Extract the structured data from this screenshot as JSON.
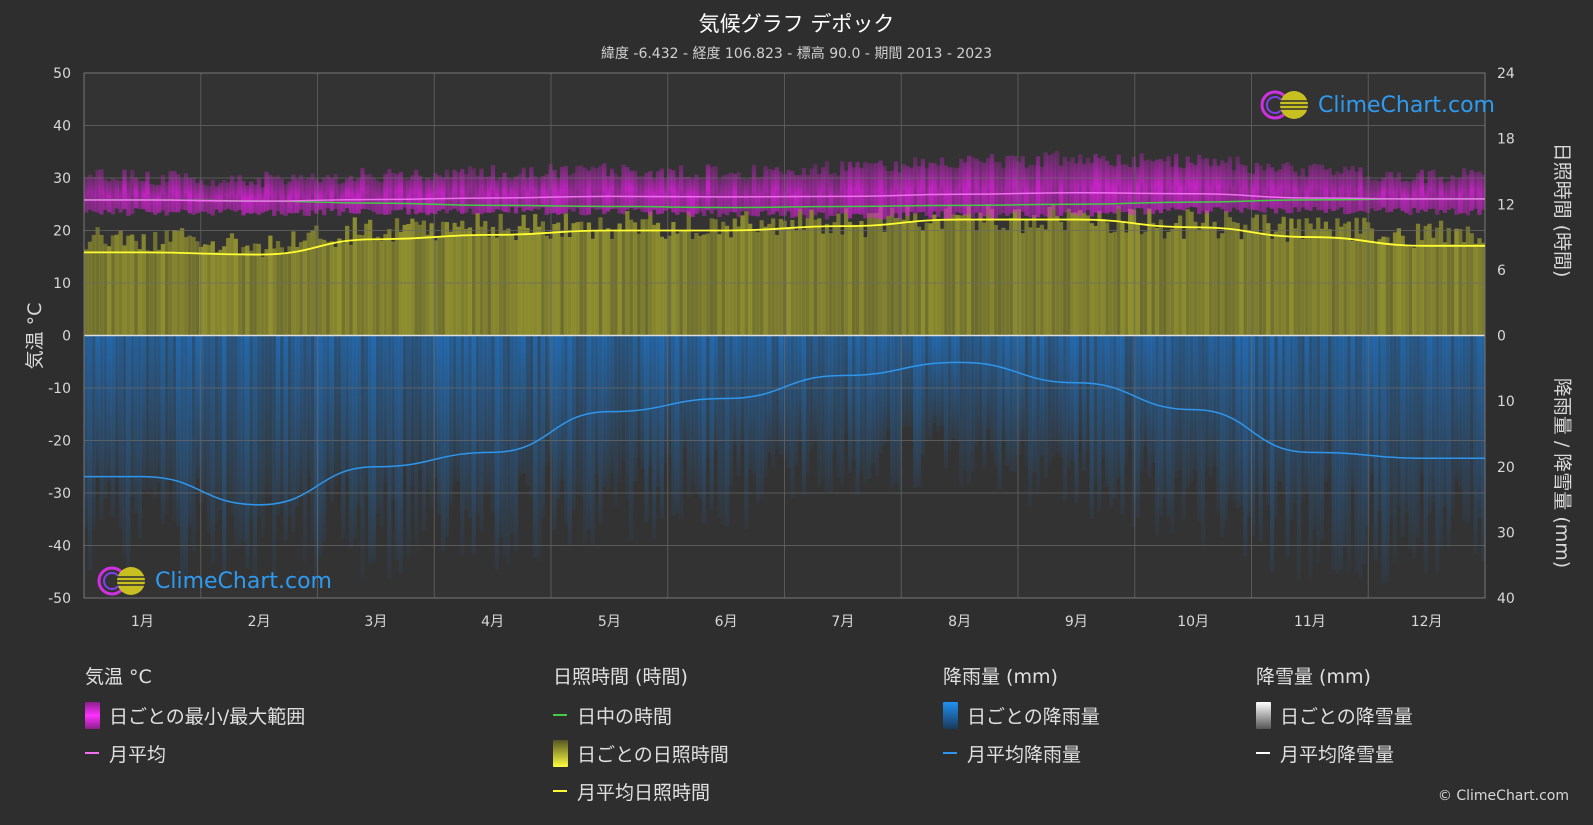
{
  "header": {
    "title": "気候グラフ デポック",
    "subtitle": "緯度 -6.432 - 経度 106.823 - 標高 90.0 - 期間 2013 - 2023"
  },
  "axes": {
    "left_label": "気温 °C",
    "right_top_label": "日照時間 (時間)",
    "right_bottom_label": "降雨量 / 降雪量 (mm)",
    "temp_ticks": [
      "50",
      "40",
      "30",
      "20",
      "10",
      "0",
      "-10",
      "-20",
      "-30",
      "-40",
      "-50"
    ],
    "sun_ticks": [
      "24",
      "18",
      "12",
      "6",
      "0"
    ],
    "rain_ticks": [
      "0",
      "10",
      "20",
      "30",
      "40"
    ]
  },
  "chart_data": {
    "type": "line",
    "categories": [
      "1月",
      "2月",
      "3月",
      "4月",
      "5月",
      "6月",
      "7月",
      "8月",
      "9月",
      "10月",
      "11月",
      "12月"
    ],
    "temp_range": [
      -50,
      50
    ],
    "sunshine_range": [
      0,
      24
    ],
    "precip_range": [
      0,
      40
    ],
    "series": [
      {
        "name": "月平均",
        "axis": "temperature",
        "values": [
          25.8,
          25.6,
          25.9,
          26.2,
          26.5,
          26.4,
          26.5,
          26.9,
          27.2,
          27.0,
          26.2,
          26.0
        ]
      },
      {
        "name": "日中の時間",
        "axis": "sunshine",
        "values": [
          12.4,
          12.3,
          12.1,
          11.9,
          11.8,
          11.7,
          11.8,
          11.9,
          12.0,
          12.2,
          12.4,
          12.5
        ]
      },
      {
        "name": "月平均日照時間",
        "axis": "sunshine",
        "values": [
          7.6,
          7.4,
          8.8,
          9.2,
          9.6,
          9.6,
          10.0,
          10.6,
          10.6,
          9.9,
          9.0,
          8.2
        ]
      },
      {
        "name": "月平均降雨量",
        "axis": "precipitation",
        "values": [
          21.5,
          25.8,
          20.0,
          17.8,
          11.6,
          9.6,
          6.1,
          4.1,
          7.2,
          11.3,
          17.8,
          18.7
        ]
      },
      {
        "name": "月平均降雪量",
        "axis": "precipitation",
        "values": [
          0,
          0,
          0,
          0,
          0,
          0,
          0,
          0,
          0,
          0,
          0,
          0
        ]
      }
    ],
    "daily_temp_band": {
      "min": [
        23.5,
        23.4,
        23.6,
        23.8,
        23.6,
        23.2,
        22.8,
        22.9,
        23.3,
        23.8,
        23.8,
        23.6
      ],
      "max": [
        30.2,
        29.8,
        30.5,
        31.0,
        31.5,
        31.2,
        31.8,
        33.0,
        33.8,
        33.2,
        31.5,
        30.5
      ]
    },
    "daily_sunshine_band": [
      9.5,
      9.0,
      10.5,
      10.8,
      11.0,
      11.0,
      11.2,
      11.5,
      11.5,
      11.0,
      10.5,
      10.0
    ],
    "daily_rain_depth": [
      38,
      40,
      38,
      36,
      32,
      30,
      26,
      24,
      28,
      32,
      38,
      38
    ]
  },
  "colors": {
    "background": "#2e2e2e",
    "grid": "#5a5a5a",
    "temp_band": "#e020e0",
    "temp_mean": "#f070f0",
    "daylight": "#44cc44",
    "sunshine_band": "#c8c832",
    "sunshine_mean": "#ffff33",
    "rain_band": "#1e7bd6",
    "rain_mean": "#2d96ee",
    "snow_mean": "#ffffff"
  },
  "legend": {
    "temperature": {
      "title": "気温 °C",
      "items": [
        "日ごとの最小/最大範囲",
        "月平均"
      ]
    },
    "sunshine": {
      "title": "日照時間 (時間)",
      "items": [
        "日中の時間",
        "日ごとの日照時間",
        "月平均日照時間"
      ]
    },
    "rain": {
      "title": "降雨量 (mm)",
      "items": [
        "日ごとの降雨量",
        "月平均降雨量"
      ]
    },
    "snow": {
      "title": "降雪量 (mm)",
      "items": [
        "日ごとの降雪量",
        "月平均降雪量"
      ]
    }
  },
  "brand": {
    "logo_text": "ClimeChart.com",
    "copyright": "© ClimeChart.com"
  }
}
